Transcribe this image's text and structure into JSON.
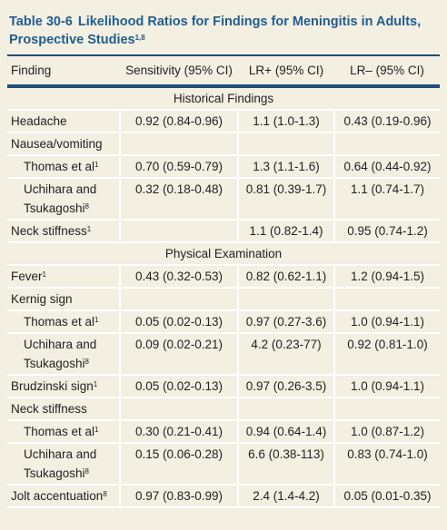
{
  "header": {
    "number": "Table 30-6",
    "title": "Likelihood Ratios for Findings for Meningitis in Adults, Prospective Studies",
    "title_sup": "1,8"
  },
  "table": {
    "columns": [
      "Finding",
      "Sensitivity (95% CI)",
      "LR+ (95% CI)",
      "LR– (95% CI)"
    ],
    "rows": [
      {
        "section": "Historical Findings"
      },
      {
        "finding": {
          "text": "Headache"
        },
        "sensitivity": "0.92 (0.84-0.96)",
        "lr_pos": "1.1 (1.0-1.3)",
        "lr_neg": "0.43 (0.19-0.96)"
      },
      {
        "finding": {
          "text": "Nausea/vomiting"
        }
      },
      {
        "finding": {
          "text": "Thomas et al",
          "sup": "1"
        },
        "indent": true,
        "sensitivity": "0.70 (0.59-0.79)",
        "lr_pos": "1.3 (1.1-1.6)",
        "lr_neg": "0.64 (0.44-0.92)"
      },
      {
        "finding": {
          "text": "Uchihara and Tsukagoshi",
          "sup": "8"
        },
        "indent": true,
        "sensitivity": "0.32 (0.18-0.48)",
        "lr_pos": "0.81 (0.39-1.7)",
        "lr_neg": "1.1 (0.74-1.7)"
      },
      {
        "finding": {
          "text": "Neck stiffness",
          "sup": "1"
        },
        "lr_pos": "1.1 (0.82-1.4)",
        "lr_neg": "0.95 (0.74-1.2)"
      },
      {
        "section": "Physical Examination"
      },
      {
        "finding": {
          "text": "Fever",
          "sup": "1"
        },
        "sensitivity": "0.43 (0.32-0.53)",
        "lr_pos": "0.82 (0.62-1.1)",
        "lr_neg": "1.2 (0.94-1.5)"
      },
      {
        "finding": {
          "text": "Kernig sign"
        }
      },
      {
        "finding": {
          "text": "Thomas et al",
          "sup": "1"
        },
        "indent": true,
        "sensitivity": "0.05 (0.02-0.13)",
        "lr_pos": "0.97 (0.27-3.6)",
        "lr_neg": "1.0 (0.94-1.1)"
      },
      {
        "finding": {
          "text": "Uchihara and Tsukagoshi",
          "sup": "8"
        },
        "indent": true,
        "sensitivity": "0.09 (0.02-0.21)",
        "lr_pos": "4.2 (0.23-77)",
        "lr_neg": "0.92 (0.81-1.0)"
      },
      {
        "finding": {
          "text": "Brudzinski sign",
          "sup": "1"
        },
        "sensitivity": "0.05 (0.02-0.13)",
        "lr_pos": "0.97 (0.26-3.5)",
        "lr_neg": "1.0 (0.94-1.1)"
      },
      {
        "finding": {
          "text": "Neck stiffness"
        }
      },
      {
        "finding": {
          "text": "Thomas et al",
          "sup": "1"
        },
        "indent": true,
        "sensitivity": "0.30 (0.21-0.41)",
        "lr_pos": "0.94 (0.64-1.4)",
        "lr_neg": "1.0 (0.87-1.2)"
      },
      {
        "finding": {
          "text": "Uchihara and Tsukagoshi",
          "sup": "8"
        },
        "indent": true,
        "sensitivity": "0.15 (0.06-0.28)",
        "lr_pos": "6.6 (0.38-113)",
        "lr_neg": "0.83 (0.74-1.0)"
      },
      {
        "finding": {
          "text": "Jolt accentuation",
          "sup": "8"
        },
        "sensitivity": "0.97 (0.83-0.99)",
        "lr_pos": "2.4 (1.4-4.2)",
        "lr_neg": "0.05 (0.01-0.35)"
      }
    ]
  }
}
